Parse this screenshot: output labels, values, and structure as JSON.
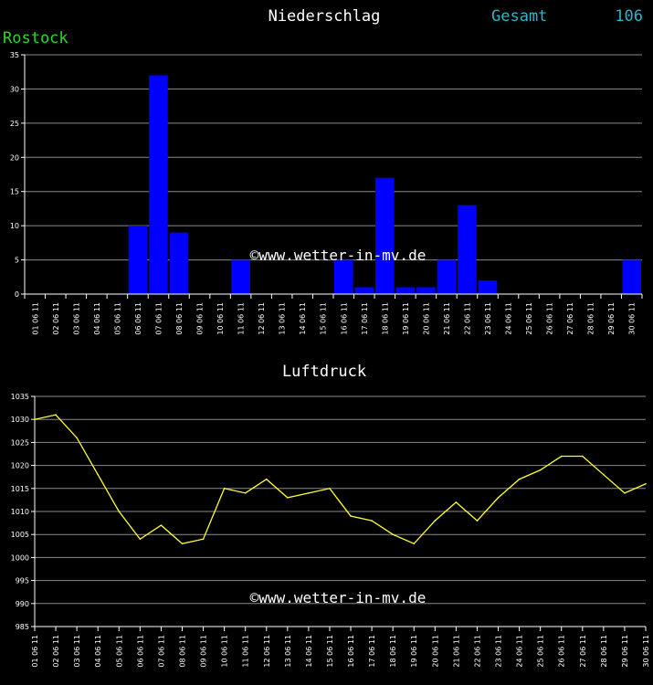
{
  "header": {
    "title": "Niederschlag",
    "total_label": "Gesamt",
    "total_value": "106",
    "station": "Rostock"
  },
  "watermark": "©www.wetter-in-mv.de",
  "chart_data": [
    {
      "type": "bar",
      "title": "Niederschlag",
      "categories": [
        "01.06.11",
        "02.06.11",
        "03.06.11",
        "04.06.11",
        "05.06.11",
        "06.06.11",
        "07.06.11",
        "08.06.11",
        "09.06.11",
        "10.06.11",
        "11.06.11",
        "12.06.11",
        "13.06.11",
        "14.06.11",
        "15.06.11",
        "16.06.11",
        "17.06.11",
        "18.06.11",
        "19.06.11",
        "20.06.11",
        "21.06.11",
        "22.06.11",
        "23.06.11",
        "24.06.11",
        "25.06.11",
        "26.06.11",
        "27.06.11",
        "28.06.11",
        "29.06.11",
        "30.06.11"
      ],
      "values": [
        0,
        0,
        0,
        0,
        0,
        10,
        32,
        9,
        0,
        0,
        5,
        0,
        0,
        0,
        0,
        5,
        1,
        17,
        1,
        1,
        5,
        13,
        2,
        0,
        0,
        0,
        0,
        0,
        0,
        5
      ],
      "ylim": [
        0,
        35
      ],
      "yticks": [
        0,
        5,
        10,
        15,
        20,
        25,
        30,
        35
      ],
      "grid": true,
      "bar_color": "#0000ff"
    },
    {
      "type": "line",
      "title": "Luftdruck",
      "categories": [
        "01.06.11",
        "02.06.11",
        "03.06.11",
        "04.06.11",
        "05.06.11",
        "06.06.11",
        "07.06.11",
        "08.06.11",
        "09.06.11",
        "10.06.11",
        "11.06.11",
        "12.06.11",
        "13.06.11",
        "14.06.11",
        "15.06.11",
        "16.06.11",
        "17.06.11",
        "18.06.11",
        "19.06.11",
        "20.06.11",
        "21.06.11",
        "22.06.11",
        "23.06.11",
        "24.06.11",
        "25.06.11",
        "26.06.11",
        "27.06.11",
        "28.06.11",
        "29.06.11",
        "30.06.11"
      ],
      "values": [
        1030,
        1031,
        1026,
        1018,
        1010,
        1004,
        1007,
        1003,
        1004,
        1015,
        1014,
        1017,
        1013,
        1014,
        1015,
        1009,
        1008,
        1005,
        1003,
        1008,
        1012,
        1008,
        1013,
        1017,
        1019,
        1022,
        1022,
        1018,
        1014,
        1016
      ],
      "ylim": [
        985,
        1035
      ],
      "yticks": [
        985,
        990,
        995,
        1000,
        1005,
        1010,
        1015,
        1020,
        1025,
        1030,
        1035
      ],
      "grid": true,
      "line_color": "#ffff33"
    }
  ]
}
